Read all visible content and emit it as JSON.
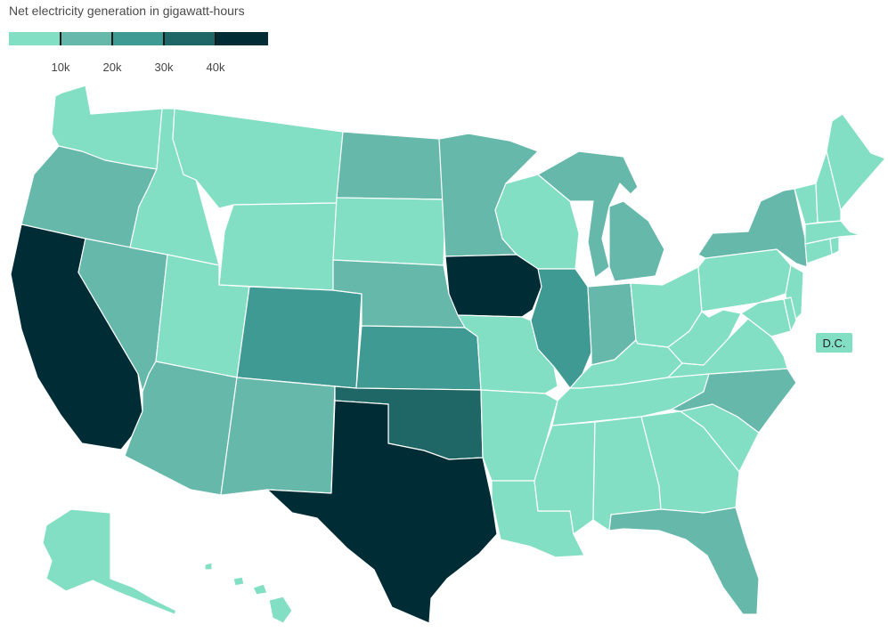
{
  "title": "Net electricity generation in gigawatt-hours",
  "legend": {
    "colors": [
      "#83dfc3",
      "#66b8ab",
      "#3f9a93",
      "#1f6766",
      "#002c35"
    ],
    "ticks": [
      "10k",
      "20k",
      "30k",
      "40k"
    ]
  },
  "dc": {
    "label": "D.C.",
    "color": "#83dfc3"
  },
  "colors": {
    "c1": "#83dfc3",
    "c2": "#66b8ab",
    "c3": "#3f9a93",
    "c4": "#1f6766",
    "c5": "#002c35"
  },
  "map": {
    "states": [
      {
        "name": "Washington",
        "class": "c1"
      },
      {
        "name": "Oregon",
        "class": "c2"
      },
      {
        "name": "California",
        "class": "c5"
      },
      {
        "name": "Nevada",
        "class": "c2"
      },
      {
        "name": "Idaho",
        "class": "c1"
      },
      {
        "name": "Montana",
        "class": "c1"
      },
      {
        "name": "Wyoming",
        "class": "c1"
      },
      {
        "name": "Utah",
        "class": "c1"
      },
      {
        "name": "Arizona",
        "class": "c2"
      },
      {
        "name": "Colorado",
        "class": "c3"
      },
      {
        "name": "New Mexico",
        "class": "c2"
      },
      {
        "name": "North Dakota",
        "class": "c2"
      },
      {
        "name": "South Dakota",
        "class": "c1"
      },
      {
        "name": "Nebraska",
        "class": "c2"
      },
      {
        "name": "Kansas",
        "class": "c3"
      },
      {
        "name": "Oklahoma",
        "class": "c4"
      },
      {
        "name": "Texas",
        "class": "c5"
      },
      {
        "name": "Minnesota",
        "class": "c2"
      },
      {
        "name": "Iowa",
        "class": "c5"
      },
      {
        "name": "Missouri",
        "class": "c1"
      },
      {
        "name": "Arkansas",
        "class": "c1"
      },
      {
        "name": "Louisiana",
        "class": "c1"
      },
      {
        "name": "Wisconsin",
        "class": "c1"
      },
      {
        "name": "Illinois",
        "class": "c3"
      },
      {
        "name": "Michigan",
        "class": "c2"
      },
      {
        "name": "Indiana",
        "class": "c2"
      },
      {
        "name": "Ohio",
        "class": "c1"
      },
      {
        "name": "Kentucky",
        "class": "c1"
      },
      {
        "name": "Tennessee",
        "class": "c1"
      },
      {
        "name": "Mississippi",
        "class": "c1"
      },
      {
        "name": "Alabama",
        "class": "c1"
      },
      {
        "name": "Georgia",
        "class": "c1"
      },
      {
        "name": "Florida",
        "class": "c2"
      },
      {
        "name": "South Carolina",
        "class": "c1"
      },
      {
        "name": "North Carolina",
        "class": "c2"
      },
      {
        "name": "Virginia",
        "class": "c1"
      },
      {
        "name": "West Virginia",
        "class": "c1"
      },
      {
        "name": "Pennsylvania",
        "class": "c1"
      },
      {
        "name": "New York",
        "class": "c2"
      },
      {
        "name": "New Jersey",
        "class": "c1"
      },
      {
        "name": "Maryland",
        "class": "c1"
      },
      {
        "name": "Delaware",
        "class": "c1"
      },
      {
        "name": "Connecticut",
        "class": "c1"
      },
      {
        "name": "Rhode Island",
        "class": "c1"
      },
      {
        "name": "Massachusetts",
        "class": "c1"
      },
      {
        "name": "Vermont",
        "class": "c1"
      },
      {
        "name": "New Hampshire",
        "class": "c1"
      },
      {
        "name": "Maine",
        "class": "c1"
      },
      {
        "name": "Alaska",
        "class": "c1"
      },
      {
        "name": "Hawaii",
        "class": "c1"
      }
    ]
  }
}
